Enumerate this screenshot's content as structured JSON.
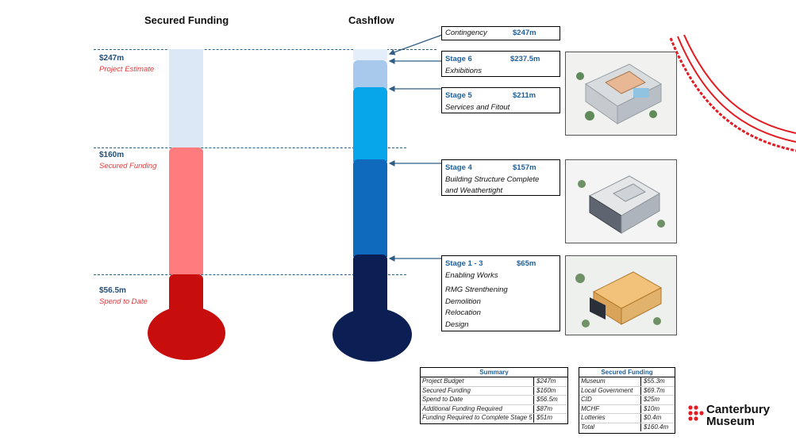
{
  "headers": {
    "secured": "Secured Funding",
    "cashflow": "Cashflow"
  },
  "markers": [
    {
      "amount": "$247m",
      "label": "Project Estimate"
    },
    {
      "amount": "$160m",
      "label": "Secured Funding"
    },
    {
      "amount": "$56.5m",
      "label": "Spend to Date"
    }
  ],
  "callouts": {
    "contingency": {
      "title": "Contingency",
      "value": "$247m"
    },
    "stage6": {
      "title": "Stage 6",
      "value": "$237.5m",
      "lines": [
        "Exhibitions"
      ]
    },
    "stage5": {
      "title": "Stage 5",
      "value": "$211m",
      "lines": [
        "Services and Fitout"
      ]
    },
    "stage4": {
      "title": "Stage 4",
      "value": "$157m",
      "lines": [
        "Building Structure Complete",
        "and Weathertight"
      ]
    },
    "stage13": {
      "title": "Stage 1 - 3",
      "value": "$65m",
      "lines": [
        "Enabling Works",
        "RMG Strenthening",
        "Demolition",
        "Relocation",
        "Design"
      ]
    }
  },
  "summary": {
    "title": "Summary",
    "rows": [
      {
        "label": "Project Budget",
        "value": "$247m"
      },
      {
        "label": "Secured Funding",
        "value": "$160m"
      },
      {
        "label": "Spend to Date",
        "value": "$56.5m"
      },
      {
        "label": "Additional Funding Required",
        "value": "$87m"
      },
      {
        "label": "Funding Required to Complete Stage 5",
        "value": "$51m"
      }
    ]
  },
  "secured_table": {
    "title": "Secured Funding",
    "rows": [
      {
        "label": "Museum",
        "value": "$55.3m"
      },
      {
        "label": "Local Government",
        "value": "$69.7m"
      },
      {
        "label": "CID",
        "value": "$25m"
      },
      {
        "label": "MCHF",
        "value": "$10m"
      },
      {
        "label": "Lotteries",
        "value": "$0.4m"
      },
      {
        "label": "Total",
        "value": "$160.4m"
      }
    ]
  },
  "logo": {
    "line1": "Canterbury",
    "line2": "Museum"
  },
  "colors": {
    "secured_light": "#dce8f5",
    "secured_pink": "#ff7b7e",
    "secured_red": "#c80d0d",
    "contingency": "#e3eefa",
    "stage6": "#a9c9ec",
    "stage5": "#07a5ea",
    "stage4": "#0f69bd",
    "stage13": "#0c1f55",
    "accent_red": "#e31b23"
  }
}
